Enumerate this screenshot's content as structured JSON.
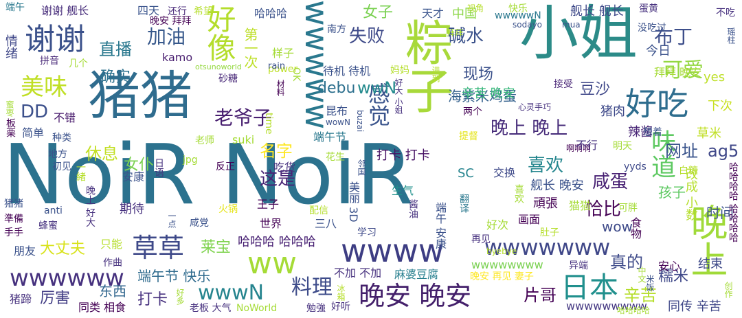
{
  "colors": {
    "purple": "#44206b",
    "blue": "#3a5a8c",
    "teal": "#2a788e",
    "green": "#2ab07f",
    "lime": "#a5db36",
    "yellow": "#d9d93a"
  },
  "words": [
    {
      "text": "NoiR NoiR",
      "color": "#2c728e"
    },
    {
      "text": "猪猪",
      "color": "#2f6c8e"
    },
    {
      "text": "小姐",
      "color": "#2c8b88"
    },
    {
      "text": "粽子",
      "color": "#a8d93a"
    },
    {
      "text": "晚上",
      "color": "#a0da39"
    },
    {
      "text": "好吃",
      "color": "#2e6d8e"
    },
    {
      "text": "谢谢",
      "color": "#3b518b"
    },
    {
      "text": "好像",
      "color": "#b4dd2c"
    },
    {
      "text": "wwww",
      "color": "#3d3d83"
    },
    {
      "text": "ww",
      "color": "#a5db36"
    },
    {
      "text": "草草",
      "color": "#3e4989"
    },
    {
      "text": "日本",
      "color": "#21908d"
    },
    {
      "text": "晚安 晚安",
      "color": "#44206b"
    },
    {
      "text": "wwwwww",
      "color": "#46317e"
    },
    {
      "text": "wwwwwww",
      "color": "#3f4788"
    },
    {
      "text": "wwwww",
      "color": "#2a788e"
    },
    {
      "text": "美味",
      "color": "#c0df25"
    },
    {
      "text": "加油",
      "color": "#38598c"
    },
    {
      "text": "直播",
      "color": "#2a788e"
    },
    {
      "text": "布丁",
      "color": "#3d4e8a"
    },
    {
      "text": "可爱",
      "color": "#93d741"
    },
    {
      "text": "碱水",
      "color": "#3b528b"
    },
    {
      "text": "感觉",
      "color": "#3a548c"
    },
    {
      "text": "味道",
      "color": "#5ec962"
    },
    {
      "text": "料理",
      "color": "#3e4c8a"
    },
    {
      "text": "女子",
      "color": "#7ad151"
    },
    {
      "text": "失败",
      "color": "#3e4a89"
    },
    {
      "text": "确实",
      "color": "#2c718e"
    },
    {
      "text": "wwN",
      "color": "#238a8d"
    },
    {
      "text": "wwwN",
      "color": "#25848e"
    },
    {
      "text": "DD",
      "color": "#3c508b"
    },
    {
      "text": "debu",
      "color": "#2d708e"
    },
    {
      "text": "豆沙",
      "color": "#3f4788"
    },
    {
      "text": "海紫米鸡蛋",
      "color": "#34618d"
    },
    {
      "text": "晚上 晚上",
      "color": "#472c7a"
    },
    {
      "text": "老爷子",
      "color": "#481f70"
    },
    {
      "text": "喜欢",
      "color": "#24868e"
    },
    {
      "text": "咸蛋",
      "color": "#482173"
    },
    {
      "text": "网址",
      "color": "#3a548c"
    },
    {
      "text": "ag5",
      "color": "#3f4788"
    },
    {
      "text": "恰比",
      "color": "#440154"
    },
    {
      "text": "这是",
      "color": "#482475"
    },
    {
      "text": "女仆",
      "color": "#7ad151"
    },
    {
      "text": "休息",
      "color": "#c2df23"
    },
    {
      "text": "名字",
      "color": "#fde725"
    },
    {
      "text": "现场",
      "color": "#3b518b"
    },
    {
      "text": "辛苦 晚安",
      "color": "#35b779"
    },
    {
      "text": "中国",
      "color": "#8bd646"
    },
    {
      "text": "舰长 舰长",
      "color": "#3e4989"
    },
    {
      "text": "第一次",
      "color": "#bddf26"
    },
    {
      "text": "真的",
      "color": "#3e4a89"
    },
    {
      "text": "辛苦",
      "color": "#b5de2b"
    },
    {
      "text": "糯米",
      "color": "#3f4889"
    },
    {
      "text": "片哥",
      "color": "#440154"
    },
    {
      "text": "大丈夫",
      "color": "#d8e219"
    },
    {
      "text": "莱宝",
      "color": "#7fd34e"
    },
    {
      "text": "端午节 快乐",
      "color": "#2f6b8e"
    },
    {
      "text": "厉害",
      "color": "#433e85"
    },
    {
      "text": "打卡",
      "color": "#46307e"
    },
    {
      "text": "东西",
      "color": "#31668e"
    },
    {
      "text": "wow",
      "color": "#3e4a89"
    },
    {
      "text": "结束",
      "color": "#3e4989"
    },
    {
      "text": "哈哈哈 哈哈哈",
      "color": "#482173"
    },
    {
      "text": "wwwwwwww",
      "color": "#7ad151"
    },
    {
      "text": "wwwwwwwww",
      "color": "#453882"
    },
    {
      "text": "麻婆豆腐",
      "color": "#277f8e"
    },
    {
      "text": "打卡 打卡",
      "color": "#471164"
    },
    {
      "text": "舰长 晚安",
      "color": "#3b528b"
    },
    {
      "text": "孩子",
      "color": "#5ec962"
    },
    {
      "text": "时间",
      "color": "#3b528b"
    },
    {
      "text": "改成 小数",
      "color": "#b5de2b"
    },
    {
      "text": "同传 辛苦",
      "color": "#3f4788"
    },
    {
      "text": "今日",
      "color": "#3b528b"
    },
    {
      "text": "拜拜 晚安",
      "color": "#a5db36"
    },
    {
      "text": "下次",
      "color": "#c8e020"
    },
    {
      "text": "草米",
      "color": "#c0df25"
    },
    {
      "text": "辣酱",
      "color": "#482576"
    },
    {
      "text": "猪肉",
      "color": "#3e4989"
    },
    {
      "text": "yes",
      "color": "#bddf26"
    },
    {
      "text": "谢谢 舰长",
      "color": "#472d7b"
    },
    {
      "text": "四天",
      "color": "#3a548c"
    },
    {
      "text": "还行",
      "color": "#482878"
    },
    {
      "text": "希望",
      "color": "#b5de2b"
    },
    {
      "text": "哈哈哈",
      "color": "#3b528b"
    },
    {
      "text": "视角",
      "color": "#b5de2b"
    },
    {
      "text": "天才",
      "color": "#3a548c"
    },
    {
      "text": "端午",
      "color": "#2a788e"
    },
    {
      "text": "晚安 拜拜",
      "color": "#440154"
    },
    {
      "text": "情绪",
      "color": "#3f4788"
    },
    {
      "text": "拼音",
      "color": "#482878"
    },
    {
      "text": "样子",
      "color": "#a5db36"
    },
    {
      "text": "power",
      "color": "#bddf26"
    },
    {
      "text": "kamo",
      "color": "#481d6f"
    },
    {
      "text": "otsunoworld",
      "color": "#95d840"
    },
    {
      "text": "rain",
      "color": "#3b528b"
    },
    {
      "text": "进到",
      "color": "#b5de2b"
    },
    {
      "text": "接受",
      "color": "#482576"
    },
    {
      "text": "砂糖",
      "color": "#482878"
    },
    {
      "text": "材料",
      "color": "#440154"
    },
    {
      "text": "不错",
      "color": "#481a6c"
    },
    {
      "text": "简单",
      "color": "#3b528b"
    },
    {
      "text": "种类",
      "color": "#3b528b"
    },
    {
      "text": "地方",
      "color": "#3b528b"
    },
    {
      "text": "初见",
      "color": "#3b528b"
    },
    {
      "text": "一緒",
      "color": "#b5de2b"
    },
    {
      "text": "安康",
      "color": "#3b528b"
    },
    {
      "text": "日语",
      "color": "#46307e"
    },
    {
      "text": "jpg",
      "color": "#a5db36"
    },
    {
      "text": "反正",
      "color": "#440154"
    },
    {
      "text": "吃货",
      "color": "#46307e"
    },
    {
      "text": "花生",
      "color": "#a5db36"
    },
    {
      "text": "邻国",
      "color": "#3b528b"
    },
    {
      "text": "交换",
      "color": "#3e4989"
    },
    {
      "text": "yyds",
      "color": "#3e4989"
    },
    {
      "text": "白糖",
      "color": "#b5de2b"
    },
    {
      "text": "SC",
      "color": "#25848e"
    },
    {
      "text": "王子",
      "color": "#440154"
    },
    {
      "text": "生气",
      "color": "#21918c"
    },
    {
      "text": "美丽 3D",
      "color": "#3b528b"
    },
    {
      "text": "端午 安康",
      "color": "#3b528b"
    },
    {
      "text": "酱油",
      "color": "#46307e"
    },
    {
      "text": "学习",
      "color": "#3e4989"
    },
    {
      "text": "三八",
      "color": "#3b528b"
    },
    {
      "text": "世界",
      "color": "#440154"
    },
    {
      "text": "火锅",
      "color": "#e5e419"
    },
    {
      "text": "配信",
      "color": "#b5de2b"
    },
    {
      "text": "一点",
      "color": "#3b528b"
    },
    {
      "text": "期待",
      "color": "#46307e"
    },
    {
      "text": "咸党",
      "color": "#3b528b"
    },
    {
      "text": "晚上 好大",
      "color": "#46307e"
    },
    {
      "text": "只能",
      "color": "#b5de2b"
    },
    {
      "text": "朋友",
      "color": "#3b528b"
    },
    {
      "text": "作曲",
      "color": "#46307e"
    },
    {
      "text": "蜂蜜",
      "color": "#46307e"
    },
    {
      "text": "猪猪",
      "color": "#3b528b"
    },
    {
      "text": "準備",
      "color": "#440154"
    },
    {
      "text": "手手",
      "color": "#440154"
    },
    {
      "text": "anti",
      "color": "#3b528b"
    },
    {
      "text": "猪蹄",
      "color": "#46307e"
    },
    {
      "text": "同类 相食",
      "color": "#440154"
    },
    {
      "text": "老板 大气",
      "color": "#46307e"
    },
    {
      "text": "NoWorld",
      "color": "#a5db36"
    },
    {
      "text": "勉強",
      "color": "#46307e"
    },
    {
      "text": "好多",
      "color": "#a5db36"
    },
    {
      "text": "冰箱",
      "color": "#b5de2b"
    },
    {
      "text": "好听",
      "color": "#46307e"
    },
    {
      "text": "哈哈哈哈",
      "color": "#a5db36"
    },
    {
      "text": "byebye",
      "color": "#b5de2b"
    },
    {
      "text": "晚安 再见 妻子",
      "color": "#fde725"
    },
    {
      "text": "不加 不加",
      "color": "#46307e"
    },
    {
      "text": "再见",
      "color": "#46307e"
    },
    {
      "text": "好次",
      "color": "#a5db36"
    },
    {
      "text": "画面",
      "color": "#440154"
    },
    {
      "text": "肚子",
      "color": "#b5de2b"
    },
    {
      "text": "异端",
      "color": "#46307e"
    },
    {
      "text": "猫猫",
      "color": "#a5db36"
    },
    {
      "text": "可胖",
      "color": "#a5db36"
    },
    {
      "text": "安心",
      "color": "#440154"
    },
    {
      "text": "食物",
      "color": "#440154"
    },
    {
      "text": "頑張",
      "color": "#440154"
    },
    {
      "text": "翻译",
      "color": "#2a788e"
    },
    {
      "text": "喜欢",
      "color": "#a5db36"
    },
    {
      "text": "中文",
      "color": "#a5db36"
    },
    {
      "text": "米饭",
      "color": "#3b528b"
    },
    {
      "text": "创作",
      "color": "#a5db36"
    },
    {
      "text": "哈哈哈哈 哈哈哈哈",
      "color": "#440154"
    },
    {
      "text": "啊啊啊",
      "color": "#440154"
    },
    {
      "text": "不行",
      "color": "#46307e"
    },
    {
      "text": "明天",
      "color": "#a5db36"
    },
    {
      "text": "想着",
      "color": "#3b528b"
    },
    {
      "text": "提督",
      "color": "#e5e419"
    },
    {
      "text": "心灵手巧",
      "color": "#46307e"
    },
    {
      "text": "好大 小姐",
      "color": "#46307e"
    },
    {
      "text": "两个",
      "color": "#440154"
    },
    {
      "text": "昆布",
      "color": "#3b528b"
    },
    {
      "text": "time",
      "color": "#b5de2b"
    },
    {
      "text": "wowN",
      "color": "#3b528b"
    },
    {
      "text": "buzai",
      "color": "#3b528b"
    },
    {
      "text": "端午节",
      "color": "#2a788e"
    },
    {
      "text": "suki",
      "color": "#a5db36"
    },
    {
      "text": "老师",
      "color": "#a5db36"
    },
    {
      "text": "待机 待机",
      "color": "#3b528b"
    },
    {
      "text": "南方",
      "color": "#3b528b"
    },
    {
      "text": "拜拜",
      "color": "#a5db36"
    },
    {
      "text": "OK",
      "color": "#a5db36"
    },
    {
      "text": "妈妈",
      "color": "#b5de2b"
    },
    {
      "text": "几个",
      "color": "#a5db36"
    },
    {
      "text": "快乐",
      "color": "#a5db36"
    },
    {
      "text": "wwwwwN",
      "color": "#2a788e"
    },
    {
      "text": "sodayo",
      "color": "#3b528b"
    },
    {
      "text": "mua",
      "color": "#3b528b"
    },
    {
      "text": "蛋黄",
      "color": "#46307e"
    },
    {
      "text": "不吃",
      "color": "#46307e"
    },
    {
      "text": "没吃过",
      "color": "#3b528b"
    },
    {
      "text": "瑶柱",
      "color": "#3b528b"
    },
    {
      "text": "板栗",
      "color": "#440154"
    },
    {
      "text": "蜜枣",
      "color": "#a5db36"
    }
  ]
}
